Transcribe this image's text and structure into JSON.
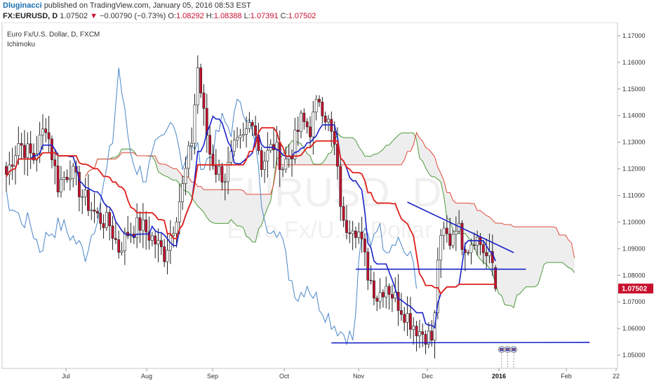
{
  "header": {
    "author": "Dluginacci",
    "published_text": "published on TradingView.com, January 05, 2016 08:53 EST",
    "symbol": "FX:EURUSD, D",
    "last_price": "1.07502",
    "change_arrow": "▼",
    "change": "−0.00790 (−0.73%)",
    "open_label": "O:",
    "open": "1.08292",
    "high_label": "H:",
    "high": "1.08388",
    "low_label": "L:",
    "low": "1.07391",
    "close_label": "C:",
    "close": "1.07502"
  },
  "chart_data": {
    "type": "candlestick",
    "title": "Euro Fx/U.S. Dollar, D, FXCM",
    "indicator": "Ichimoku",
    "watermark_line1": "EURUSD, D",
    "watermark_line2": "Euro Fx/U.S. Dollar",
    "ylim": [
      1.045,
      1.175
    ],
    "y_ticks": [
      "1.17000",
      "1.16000",
      "1.15000",
      "1.14000",
      "1.13000",
      "1.12000",
      "1.11000",
      "1.10000",
      "1.09000",
      "1.08000",
      "1.07000",
      "1.06000",
      "1.05000"
    ],
    "x_ticks": [
      "Jul",
      "Aug",
      "Sep",
      "Oct",
      "Nov",
      "Dec",
      "2016",
      "Feb",
      "22"
    ],
    "x_tick_bold": "2016",
    "last_price_label": "1.07502",
    "colors": {
      "up": "#ffffff",
      "down": "#c8102e",
      "wick": "#222222",
      "conversion": "#1a22c8",
      "base": "#e0201a",
      "lagging": "#4a86c8",
      "span_a": "#4c9a3a",
      "span_b": "#e04a3a",
      "cloud": "#eeeeee",
      "trendline": "#1a22c8"
    },
    "trendlines": [
      {
        "name": "falling-resistance",
        "from": [
          132,
          1.1075
        ],
        "to": [
          167,
          1.0885
        ]
      },
      {
        "name": "horizontal-1.082",
        "from": [
          115,
          1.0823
        ],
        "to": [
          171,
          1.0823
        ]
      },
      {
        "name": "support-1.0545",
        "from": [
          107,
          1.0546
        ],
        "to": [
          192,
          1.0548
        ]
      }
    ]
  }
}
